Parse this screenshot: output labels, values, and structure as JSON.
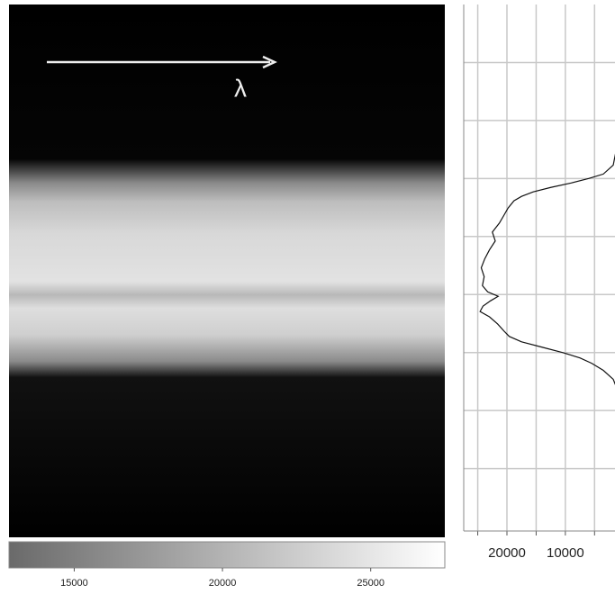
{
  "annotation": "λ",
  "chart_data": [
    {
      "type": "image",
      "colorbar": {
        "xlim": [
          12800,
          27500
        ],
        "xticks": [
          15000,
          20000,
          25000
        ],
        "colors": [
          "#6a6a6a",
          "#ffffff"
        ]
      }
    },
    {
      "type": "line",
      "xlim": [
        27400,
        1500
      ],
      "xticks": [
        20000,
        10000
      ],
      "minor_xticks": [
        25000,
        15000,
        5000
      ],
      "ylim": [
        0,
        590
      ],
      "yticks": [
        65,
        130,
        195,
        260,
        325,
        390,
        455,
        520
      ],
      "grid": true,
      "color": "#111111",
      "rows": [
        0,
        40,
        80,
        120,
        160,
        180,
        190,
        195,
        200,
        205,
        210,
        215,
        220,
        228,
        236,
        245,
        255,
        265,
        275,
        285,
        295,
        305,
        315,
        322,
        327,
        332,
        338,
        344,
        350,
        358,
        366,
        372,
        378,
        384,
        390,
        396,
        402,
        410,
        420,
        430,
        460,
        500,
        540,
        590
      ],
      "values": [
        800,
        800,
        900,
        1000,
        1200,
        1800,
        3500,
        6000,
        9000,
        12500,
        15500,
        17500,
        18800,
        19800,
        20500,
        21300,
        22500,
        22000,
        23000,
        23800,
        24400,
        23900,
        24200,
        23300,
        21500,
        22800,
        24100,
        24600,
        23000,
        21600,
        20500,
        19600,
        17500,
        14000,
        10500,
        7500,
        5500,
        3500,
        1800,
        1200,
        1000,
        900,
        850,
        800
      ]
    }
  ]
}
